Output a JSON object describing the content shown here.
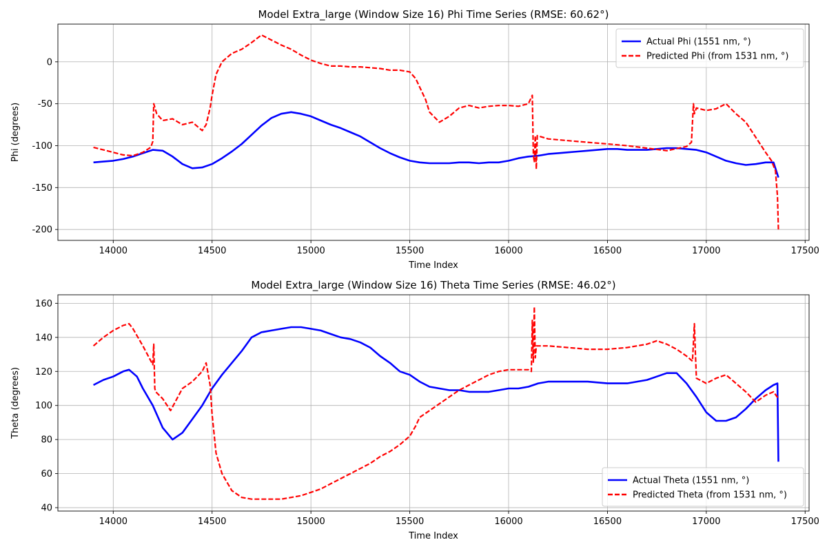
{
  "chart_data": [
    {
      "type": "line",
      "title": "Model Extra_large (Window Size 16) Phi Time Series (RMSE: 60.62°)",
      "xlabel": "Time Index",
      "ylabel": "Phi (degrees)",
      "xlim": [
        13720,
        17520
      ],
      "ylim": [
        -213,
        45
      ],
      "xticks": [
        14000,
        14500,
        15000,
        15500,
        16000,
        16500,
        17000,
        17500
      ],
      "yticks": [
        -200,
        -150,
        -100,
        -50,
        0
      ],
      "grid": true,
      "legend_position": "top-right",
      "series": [
        {
          "name": "Actual Phi (1551 nm, °)",
          "color": "#0000ff",
          "style": "solid",
          "x": [
            13900,
            13950,
            14000,
            14050,
            14100,
            14150,
            14200,
            14250,
            14300,
            14350,
            14400,
            14450,
            14500,
            14550,
            14600,
            14650,
            14700,
            14750,
            14800,
            14850,
            14900,
            14950,
            15000,
            15050,
            15100,
            15150,
            15200,
            15250,
            15300,
            15350,
            15400,
            15450,
            15500,
            15550,
            15600,
            15650,
            15700,
            15750,
            15800,
            15850,
            15900,
            15950,
            16000,
            16050,
            16100,
            16150,
            16200,
            16250,
            16300,
            16350,
            16400,
            16450,
            16500,
            16550,
            16600,
            16650,
            16700,
            16750,
            16800,
            16850,
            16900,
            16950,
            17000,
            17050,
            17100,
            17150,
            17200,
            17250,
            17300,
            17340,
            17365
          ],
          "y": [
            -120,
            -119,
            -118,
            -116,
            -113,
            -109,
            -105,
            -106,
            -113,
            -122,
            -127,
            -126,
            -122,
            -115,
            -107,
            -98,
            -87,
            -76,
            -67,
            -62,
            -60,
            -62,
            -65,
            -70,
            -75,
            -79,
            -84,
            -89,
            -96,
            -103,
            -109,
            -114,
            -118,
            -120,
            -121,
            -121,
            -121,
            -120,
            -120,
            -121,
            -120,
            -120,
            -118,
            -115,
            -113,
            -112,
            -110,
            -109,
            -108,
            -107,
            -106,
            -105,
            -104,
            -104,
            -105,
            -105,
            -105,
            -104,
            -103,
            -103,
            -104,
            -105,
            -108,
            -113,
            -118,
            -121,
            -123,
            -122,
            -120,
            -120,
            -138
          ]
        },
        {
          "name": "Predicted Phi (from 1531 nm, °)",
          "color": "#ff0000",
          "style": "dashed",
          "x": [
            13900,
            13950,
            14000,
            14050,
            14100,
            14150,
            14190,
            14200,
            14205,
            14220,
            14250,
            14300,
            14350,
            14400,
            14450,
            14470,
            14490,
            14500,
            14520,
            14550,
            14600,
            14650,
            14700,
            14750,
            14800,
            14850,
            14900,
            14950,
            15000,
            15050,
            15100,
            15150,
            15200,
            15250,
            15300,
            15350,
            15400,
            15450,
            15500,
            15530,
            15550,
            15580,
            15600,
            15650,
            15700,
            15750,
            15800,
            15850,
            15900,
            15950,
            16000,
            16050,
            16100,
            16120,
            16125,
            16130,
            16135,
            16140,
            16145,
            16200,
            16300,
            16400,
            16500,
            16600,
            16700,
            16800,
            16900,
            16925,
            16935,
            16940,
            16950,
            17000,
            17050,
            17100,
            17150,
            17200,
            17250,
            17300,
            17330,
            17350,
            17360,
            17365
          ],
          "y": [
            -102,
            -105,
            -108,
            -111,
            -112,
            -108,
            -102,
            -95,
            -50,
            -62,
            -70,
            -68,
            -75,
            -72,
            -82,
            -75,
            -55,
            -40,
            -15,
            0,
            10,
            15,
            23,
            32,
            26,
            20,
            15,
            8,
            2,
            -2,
            -5,
            -5,
            -6,
            -6,
            -7,
            -8,
            -10,
            -10,
            -12,
            -20,
            -30,
            -45,
            -60,
            -72,
            -65,
            -55,
            -52,
            -55,
            -53,
            -52,
            -52,
            -53,
            -50,
            -40,
            -110,
            -120,
            -88,
            -128,
            -88,
            -92,
            -94,
            -96,
            -98,
            -100,
            -103,
            -106,
            -101,
            -96,
            -50,
            -62,
            -55,
            -58,
            -56,
            -50,
            -62,
            -72,
            -90,
            -108,
            -118,
            -130,
            -160,
            -200
          ]
        }
      ]
    },
    {
      "type": "line",
      "title": "Model Extra_large (Window Size 16) Theta Time Series (RMSE: 46.02°)",
      "xlabel": "Time Index",
      "ylabel": "Theta (degrees)",
      "xlim": [
        13720,
        17520
      ],
      "ylim": [
        38,
        165
      ],
      "xticks": [
        14000,
        14500,
        15000,
        15500,
        16000,
        16500,
        17000,
        17500
      ],
      "yticks": [
        40,
        60,
        80,
        100,
        120,
        140,
        160
      ],
      "grid": true,
      "legend_position": "bottom-right",
      "series": [
        {
          "name": "Actual Theta (1551 nm, °)",
          "color": "#0000ff",
          "style": "solid",
          "x": [
            13900,
            13950,
            14000,
            14050,
            14080,
            14120,
            14150,
            14200,
            14250,
            14300,
            14350,
            14400,
            14450,
            14500,
            14550,
            14600,
            14650,
            14700,
            14750,
            14800,
            14850,
            14900,
            14950,
            15000,
            15050,
            15100,
            15150,
            15200,
            15250,
            15300,
            15350,
            15400,
            15450,
            15500,
            15550,
            15600,
            15650,
            15700,
            15750,
            15800,
            15850,
            15900,
            15950,
            16000,
            16050,
            16100,
            16150,
            16200,
            16300,
            16400,
            16500,
            16600,
            16700,
            16750,
            16800,
            16850,
            16900,
            16950,
            17000,
            17050,
            17100,
            17150,
            17200,
            17250,
            17300,
            17340,
            17360,
            17365
          ],
          "y": [
            112,
            115,
            117,
            120,
            121,
            117,
            110,
            100,
            87,
            80,
            84,
            92,
            100,
            110,
            118,
            125,
            132,
            140,
            143,
            144,
            145,
            146,
            146,
            145,
            144,
            142,
            140,
            139,
            137,
            134,
            129,
            125,
            120,
            118,
            114,
            111,
            110,
            109,
            109,
            108,
            108,
            108,
            109,
            110,
            110,
            111,
            113,
            114,
            114,
            114,
            113,
            113,
            115,
            117,
            119,
            119,
            113,
            105,
            96,
            91,
            91,
            93,
            98,
            104,
            109,
            112,
            113,
            67
          ]
        },
        {
          "name": "Predicted Theta (from 1531 nm, °)",
          "color": "#ff0000",
          "style": "dashed",
          "x": [
            13900,
            13950,
            14000,
            14050,
            14080,
            14100,
            14150,
            14200,
            14205,
            14210,
            14215,
            14250,
            14290,
            14350,
            14400,
            14450,
            14470,
            14490,
            14500,
            14520,
            14550,
            14600,
            14650,
            14700,
            14750,
            14800,
            14850,
            14900,
            14950,
            15000,
            15050,
            15100,
            15150,
            15200,
            15250,
            15300,
            15350,
            15400,
            15450,
            15500,
            15530,
            15550,
            15600,
            15650,
            15700,
            15750,
            15800,
            15850,
            15900,
            15950,
            16000,
            16050,
            16100,
            16115,
            16120,
            16125,
            16130,
            16135,
            16140,
            16200,
            16300,
            16400,
            16500,
            16600,
            16700,
            16750,
            16800,
            16850,
            16900,
            16930,
            16940,
            16945,
            16950,
            17000,
            17050,
            17100,
            17150,
            17200,
            17250,
            17300,
            17340,
            17365
          ],
          "y": [
            135,
            140,
            144,
            147,
            148,
            145,
            135,
            124,
            136,
            110,
            108,
            104,
            97,
            110,
            114,
            120,
            125,
            112,
            95,
            72,
            60,
            50,
            46,
            45,
            45,
            45,
            45,
            46,
            47,
            49,
            51,
            54,
            57,
            60,
            63,
            66,
            70,
            73,
            77,
            82,
            88,
            93,
            97,
            101,
            105,
            109,
            112,
            115,
            118,
            120,
            121,
            121,
            121,
            120,
            150,
            125,
            158,
            128,
            135,
            135,
            134,
            133,
            133,
            134,
            136,
            138,
            136,
            133,
            129,
            126,
            148,
            130,
            116,
            113,
            116,
            118,
            113,
            108,
            102,
            106,
            108,
            104
          ]
        }
      ]
    }
  ]
}
